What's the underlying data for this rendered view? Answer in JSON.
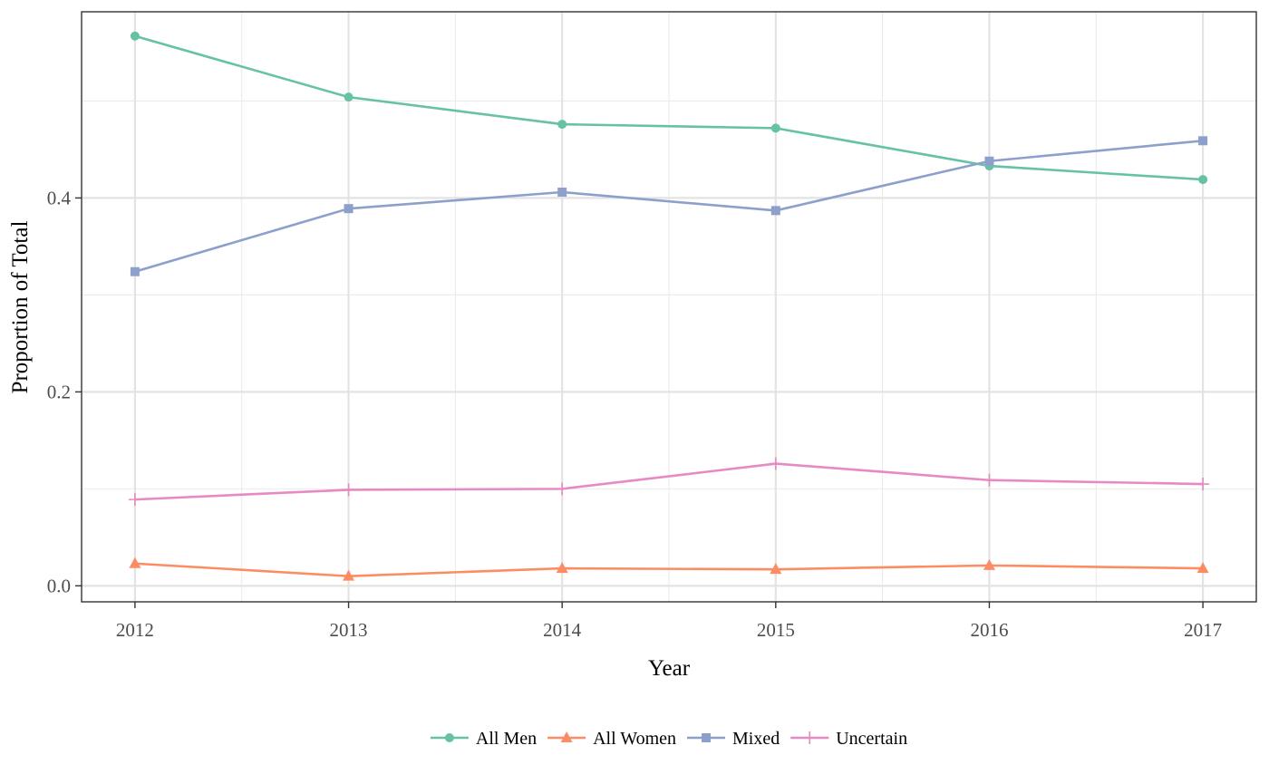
{
  "chart_data": {
    "type": "line",
    "title": "",
    "xlabel": "Year",
    "ylabel": "Proportion of Total",
    "x": [
      2012,
      2013,
      2014,
      2015,
      2016,
      2017
    ],
    "x_tick_labels": [
      "2012",
      "2013",
      "2014",
      "2015",
      "2016",
      "2017"
    ],
    "xlim": [
      2011.75,
      2017.25
    ],
    "y_ticks": [
      0.0,
      0.2,
      0.4
    ],
    "y_tick_labels": [
      "0.0",
      "0.2",
      "0.4"
    ],
    "ylim": [
      -0.0165,
      0.592
    ],
    "grid": true,
    "legend_position": "bottom",
    "series": [
      {
        "name": "All Men",
        "marker": "circle",
        "color": "#66c2a5",
        "values": [
          0.567,
          0.504,
          0.476,
          0.472,
          0.433,
          0.419
        ]
      },
      {
        "name": "All Women",
        "marker": "triangle",
        "color": "#fc8d62",
        "values": [
          0.023,
          0.01,
          0.018,
          0.017,
          0.021,
          0.018
        ]
      },
      {
        "name": "Mixed",
        "marker": "square",
        "color": "#8da0cb",
        "values": [
          0.324,
          0.389,
          0.406,
          0.387,
          0.438,
          0.459
        ]
      },
      {
        "name": "Uncertain",
        "marker": "plus",
        "color": "#e78ac3",
        "values": [
          0.089,
          0.099,
          0.1,
          0.126,
          0.109,
          0.105
        ]
      }
    ]
  }
}
